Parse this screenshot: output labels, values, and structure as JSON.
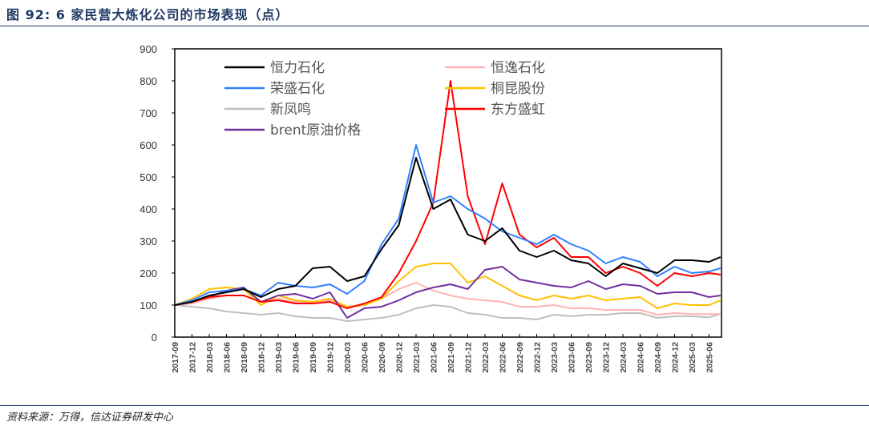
{
  "header": {
    "title": "图 92:  6 家民营大炼化公司的市场表现（点）"
  },
  "footer": {
    "source": "资料来源：万得，信达证券研发中心"
  },
  "chart_data": {
    "type": "line",
    "title": "",
    "xlabel": "",
    "ylabel": "",
    "ylim": [
      0,
      900
    ],
    "yticks": [
      "0",
      "100",
      "200",
      "300",
      "400",
      "500",
      "600",
      "700",
      "800",
      "900"
    ],
    "grid": false,
    "legend_position": "top",
    "xtick_labels": [
      "2017-09",
      "2017-12",
      "2018-03",
      "2018-06",
      "2018-09",
      "2018-12",
      "2019-03",
      "2019-06",
      "2019-09",
      "2019-12",
      "2020-03",
      "2020-06",
      "2020-09",
      "2020-12",
      "2021-03",
      "2021-06",
      "2021-09",
      "2021-12",
      "2022-03",
      "2022-06",
      "2022-09",
      "2022-12",
      "2023-03",
      "2023-06",
      "2023-09",
      "2023-12",
      "2024-03",
      "2024-06",
      "2024-09",
      "2024-12",
      "2025-03",
      "2025-06"
    ],
    "x": [
      "2017-09",
      "2017-12",
      "2018-03",
      "2018-06",
      "2018-09",
      "2018-12",
      "2019-03",
      "2019-06",
      "2019-09",
      "2019-12",
      "2020-03",
      "2020-06",
      "2020-09",
      "2020-12",
      "2021-03",
      "2021-06",
      "2021-09",
      "2021-12",
      "2022-03",
      "2022-06",
      "2022-09",
      "2022-12",
      "2023-03",
      "2023-06",
      "2023-09",
      "2023-12",
      "2024-03",
      "2024-06",
      "2024-09",
      "2024-12",
      "2025-03",
      "2025-06",
      "2025-08"
    ],
    "series": [
      {
        "name": "恒力石化",
        "color": "#000000",
        "values": [
          100,
          110,
          130,
          140,
          150,
          125,
          150,
          160,
          215,
          220,
          175,
          190,
          275,
          350,
          560,
          400,
          430,
          320,
          300,
          340,
          270,
          250,
          270,
          240,
          230,
          190,
          230,
          215,
          200,
          240,
          240,
          235,
          250
        ]
      },
      {
        "name": "恒逸石化",
        "color": "#ffb3b3",
        "values": [
          100,
          105,
          120,
          130,
          130,
          110,
          120,
          110,
          110,
          115,
          95,
          100,
          120,
          150,
          170,
          145,
          130,
          120,
          115,
          110,
          95,
          95,
          100,
          90,
          90,
          85,
          85,
          85,
          70,
          75,
          72,
          72,
          72
        ]
      },
      {
        "name": "荣盛石化",
        "color": "#2f80ff",
        "values": [
          100,
          115,
          140,
          145,
          150,
          130,
          170,
          160,
          155,
          165,
          135,
          175,
          290,
          370,
          600,
          420,
          440,
          400,
          370,
          330,
          310,
          290,
          320,
          290,
          270,
          230,
          250,
          235,
          190,
          220,
          200,
          205,
          215
        ]
      },
      {
        "name": "桐昆股份",
        "color": "#ffc000",
        "values": [
          100,
          120,
          150,
          155,
          150,
          100,
          130,
          115,
          110,
          120,
          95,
          100,
          120,
          175,
          220,
          230,
          230,
          170,
          190,
          160,
          130,
          115,
          130,
          120,
          130,
          115,
          120,
          125,
          90,
          105,
          100,
          100,
          115
        ]
      },
      {
        "name": "新凤鸣",
        "color": "#bfbfbf",
        "values": [
          100,
          95,
          90,
          80,
          75,
          70,
          75,
          65,
          60,
          60,
          50,
          55,
          60,
          70,
          90,
          100,
          95,
          75,
          70,
          60,
          60,
          55,
          70,
          65,
          70,
          70,
          75,
          75,
          60,
          65,
          65,
          62,
          72
        ]
      },
      {
        "name": "东方盛虹",
        "color": "#ff0000",
        "values": [
          100,
          110,
          125,
          130,
          130,
          110,
          115,
          105,
          105,
          110,
          90,
          105,
          125,
          200,
          300,
          420,
          800,
          440,
          290,
          480,
          320,
          280,
          310,
          250,
          250,
          200,
          220,
          200,
          160,
          200,
          190,
          200,
          195
        ]
      },
      {
        "name": "brent原油价格",
        "color": "#7030a0",
        "values": [
          100,
          110,
          125,
          145,
          155,
          110,
          130,
          135,
          120,
          140,
          60,
          90,
          95,
          115,
          140,
          155,
          165,
          150,
          210,
          220,
          180,
          170,
          160,
          155,
          175,
          150,
          165,
          160,
          135,
          140,
          140,
          125,
          130
        ]
      }
    ]
  }
}
